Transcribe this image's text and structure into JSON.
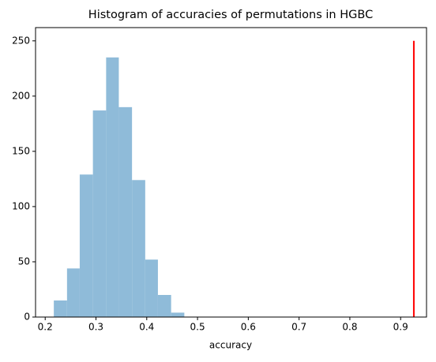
{
  "chart_data": {
    "type": "histogram",
    "title": "Histogram of accuracies of permutations in HGBC",
    "x_label": "accuracy",
    "bins": [
      0.217,
      0.243,
      0.268,
      0.294,
      0.32,
      0.345,
      0.371,
      0.397,
      0.422,
      0.448,
      0.474
    ],
    "values": [
      15,
      44,
      129,
      187,
      235,
      190,
      124,
      52,
      20,
      4
    ],
    "color": "#8fbbd9",
    "reference_line": {
      "x": 0.926,
      "y": [
        0,
        250
      ],
      "color": "#ff0000"
    },
    "xlim": [
      0.181,
      0.951
    ],
    "ylim": [
      0,
      262
    ],
    "xticks": [
      0.2,
      0.3,
      0.4,
      0.5,
      0.6,
      0.7,
      0.8,
      0.9
    ],
    "yticks": [
      0,
      50,
      100,
      150,
      200,
      250
    ]
  }
}
